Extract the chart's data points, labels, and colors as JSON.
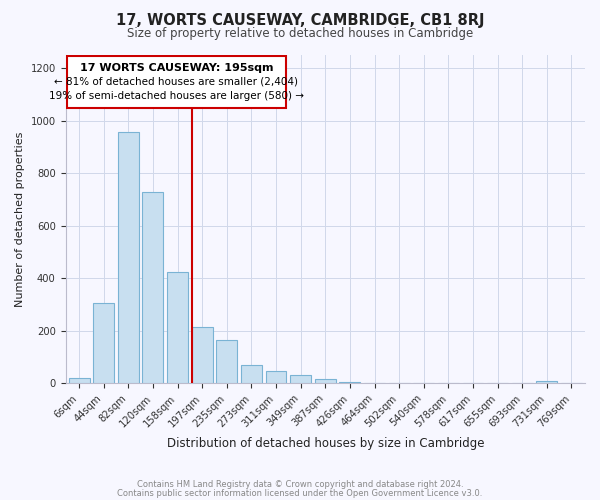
{
  "title": "17, WORTS CAUSEWAY, CAMBRIDGE, CB1 8RJ",
  "subtitle": "Size of property relative to detached houses in Cambridge",
  "xlabel": "Distribution of detached houses by size in Cambridge",
  "ylabel": "Number of detached properties",
  "footer_line1": "Contains HM Land Registry data © Crown copyright and database right 2024.",
  "footer_line2": "Contains public sector information licensed under the Open Government Licence v3.0.",
  "bar_labels": [
    "6sqm",
    "44sqm",
    "82sqm",
    "120sqm",
    "158sqm",
    "197sqm",
    "235sqm",
    "273sqm",
    "311sqm",
    "349sqm",
    "387sqm",
    "426sqm",
    "464sqm",
    "502sqm",
    "540sqm",
    "578sqm",
    "617sqm",
    "655sqm",
    "693sqm",
    "731sqm",
    "769sqm"
  ],
  "bar_values": [
    20,
    305,
    955,
    730,
    425,
    215,
    165,
    70,
    47,
    33,
    17,
    5,
    0,
    0,
    0,
    0,
    0,
    0,
    0,
    8,
    0
  ],
  "bar_color": "#c8dff0",
  "bar_edge_color": "#7ab3d4",
  "ylim": [
    0,
    1250
  ],
  "yticks": [
    0,
    200,
    400,
    600,
    800,
    1000,
    1200
  ],
  "annotation_title": "17 WORTS CAUSEWAY: 195sqm",
  "annotation_line1": "← 81% of detached houses are smaller (2,404)",
  "annotation_line2": "19% of semi-detached houses are larger (580) →",
  "vline_index": 5,
  "vline_color": "#cc0000",
  "background_color": "#f7f7ff",
  "grid_color": "#d0d8ea",
  "title_color": "#222222",
  "subtitle_color": "#444444",
  "footer_color": "#888888"
}
